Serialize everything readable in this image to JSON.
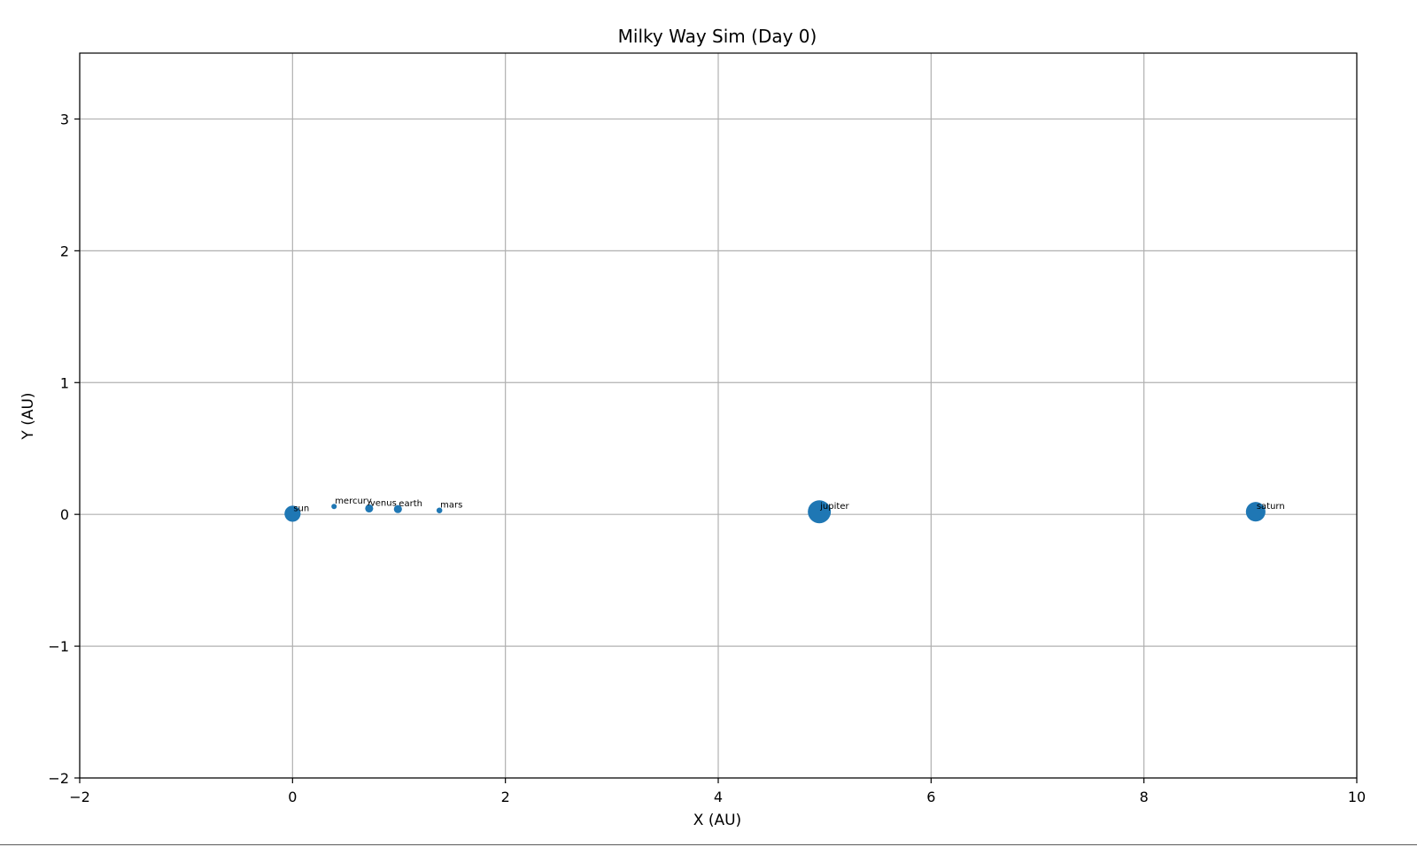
{
  "chart_data": {
    "type": "scatter",
    "title": "Milky Way Sim (Day 0)",
    "xlabel": "X (AU)",
    "ylabel": "Y (AU)",
    "xlim": [
      -2,
      10
    ],
    "ylim": [
      -2,
      3.5
    ],
    "xticks": [
      -2,
      0,
      2,
      4,
      6,
      8,
      10
    ],
    "xtick_labels": [
      "−2",
      "0",
      "2",
      "4",
      "6",
      "8",
      "10"
    ],
    "yticks": [
      -2,
      -1,
      0,
      1,
      2,
      3
    ],
    "ytick_labels": [
      "−2",
      "−1",
      "0",
      "1",
      "2",
      "3"
    ],
    "grid": true,
    "marker_color": "#1f77b4",
    "points": [
      {
        "label": "sun",
        "x": 0.0,
        "y": 0.005,
        "relative_size": 0.7
      },
      {
        "label": "mercury",
        "x": 0.39,
        "y": 0.06,
        "relative_size": 0.2
      },
      {
        "label": "venus",
        "x": 0.72,
        "y": 0.045,
        "relative_size": 0.35
      },
      {
        "label": "earth",
        "x": 0.99,
        "y": 0.04,
        "relative_size": 0.35
      },
      {
        "label": "mars",
        "x": 1.38,
        "y": 0.03,
        "relative_size": 0.25
      },
      {
        "label": "jupiter",
        "x": 4.95,
        "y": 0.02,
        "relative_size": 1.0
      },
      {
        "label": "saturn",
        "x": 9.05,
        "y": 0.02,
        "relative_size": 0.85
      }
    ]
  }
}
